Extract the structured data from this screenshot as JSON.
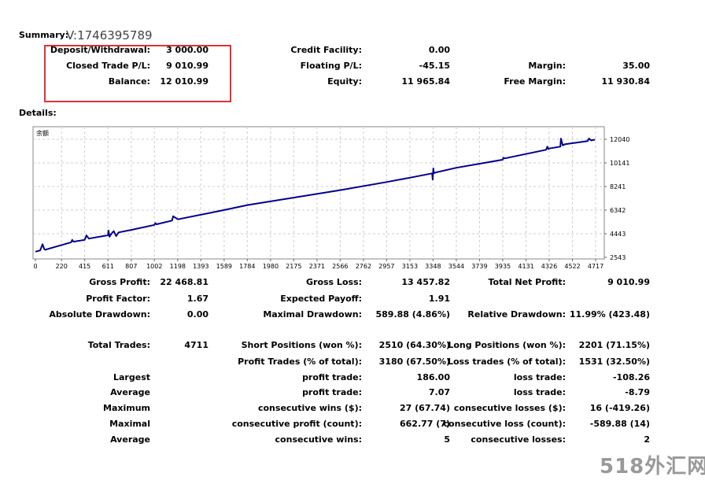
{
  "summary": {
    "title": "Summary:",
    "account": "V:1746395789",
    "rows": [
      [
        {
          "label": "Deposit/Withdrawal:",
          "value": "3 000.00"
        },
        {
          "label": "Credit Facility:",
          "value": "0.00"
        },
        {
          "label": "",
          "value": ""
        }
      ],
      [
        {
          "label": "Closed Trade P/L:",
          "value": "9 010.99"
        },
        {
          "label": "Floating P/L:",
          "value": "-45.15"
        },
        {
          "label": "Margin:",
          "value": "35.00"
        }
      ],
      [
        {
          "label": "Balance:",
          "value": "12 010.99"
        },
        {
          "label": "Equity:",
          "value": "11 965.84"
        },
        {
          "label": "Free Margin:",
          "value": "11 930.84"
        }
      ]
    ]
  },
  "details": {
    "title": "Details:",
    "rows": [
      [
        {
          "label": "Gross Profit:",
          "value": "22 468.81"
        },
        {
          "label": "Gross Loss:",
          "value": "13 457.82"
        },
        {
          "label": "Total Net Profit:",
          "value": "9 010.99"
        }
      ],
      [
        {
          "label": "Profit Factor:",
          "value": "1.67"
        },
        {
          "label": "Expected Payoff:",
          "value": "1.91"
        },
        {
          "label": "",
          "value": ""
        }
      ],
      [
        {
          "label": "Absolute Drawdown:",
          "value": "0.00"
        },
        {
          "label": "Maximal Drawdown:",
          "value": "589.88 (4.86%)"
        },
        {
          "label": "Relative Drawdown:",
          "value": "11.99% (423.48)"
        }
      ],
      [
        {
          "label": "Total Trades:",
          "value": "4711"
        },
        {
          "label": "Short Positions (won %):",
          "value": "2510 (64.30%)"
        },
        {
          "label": "Long Positions (won %):",
          "value": "2201 (71.15%)"
        }
      ],
      [
        {
          "label": "",
          "value": ""
        },
        {
          "label": "Profit Trades (% of total):",
          "value": "3180 (67.50%)"
        },
        {
          "label": "Loss trades (% of total):",
          "value": "1531 (32.50%)"
        }
      ],
      [
        {
          "label": "Largest",
          "value": ""
        },
        {
          "label": "profit trade:",
          "value": "186.00"
        },
        {
          "label": "loss trade:",
          "value": "-108.26"
        }
      ],
      [
        {
          "label": "Average",
          "value": ""
        },
        {
          "label": "profit trade:",
          "value": "7.07"
        },
        {
          "label": "loss trade:",
          "value": "-8.79"
        }
      ],
      [
        {
          "label": "Maximum",
          "value": ""
        },
        {
          "label": "consecutive wins ($):",
          "value": "27 (67.74)"
        },
        {
          "label": "consecutive losses ($):",
          "value": "16 (-419.26)"
        }
      ],
      [
        {
          "label": "Maximal",
          "value": ""
        },
        {
          "label": "consecutive profit (count):",
          "value": "662.77 (7)"
        },
        {
          "label": "consecutive loss (count):",
          "value": "-589.88 (14)"
        }
      ],
      [
        {
          "label": "Average",
          "value": ""
        },
        {
          "label": "consecutive wins:",
          "value": "5"
        },
        {
          "label": "consecutive losses:",
          "value": "2"
        }
      ]
    ]
  },
  "watermark": "518外汇网",
  "chart_data": {
    "type": "line",
    "title": "余额",
    "xlabel": "",
    "ylabel": "",
    "xlim": [
      0,
      4760
    ],
    "ylim": [
      2543,
      12040
    ],
    "x_ticks": [
      0,
      220,
      415,
      611,
      807,
      1002,
      1198,
      1393,
      1589,
      1784,
      1980,
      2175,
      2371,
      2566,
      2762,
      2957,
      3153,
      3348,
      3544,
      3739,
      3935,
      4131,
      4326,
      4522,
      4717
    ],
    "y_ticks": [
      2543,
      4443,
      6342,
      8241,
      10141,
      12040
    ],
    "grid": true,
    "series": [
      {
        "name": "Balance",
        "color": "#00008b",
        "x": [
          0,
          40,
          60,
          75,
          85,
          100,
          300,
          310,
          320,
          415,
          430,
          450,
          611,
          615,
          625,
          640,
          660,
          680,
          700,
          807,
          1002,
          1010,
          1020,
          1150,
          1160,
          1200,
          1589,
          1784,
          2175,
          2566,
          2957,
          3153,
          3340,
          3345,
          3350,
          3355,
          3360,
          3544,
          3935,
          3940,
          3950,
          4300,
          4310,
          4320,
          4326,
          4420,
          4425,
          4440,
          4460,
          4650,
          4660,
          4680,
          4711
        ],
        "y": [
          3000,
          3100,
          3600,
          3200,
          3150,
          3200,
          3750,
          3950,
          3800,
          3950,
          4300,
          4050,
          4320,
          4700,
          4200,
          4450,
          4650,
          4250,
          4550,
          4750,
          5150,
          5300,
          5200,
          5500,
          5850,
          5600,
          6350,
          6750,
          7350,
          7950,
          8600,
          8950,
          9300,
          8800,
          9700,
          9300,
          9350,
          9750,
          10400,
          10550,
          10500,
          11200,
          11450,
          11250,
          11300,
          11450,
          12100,
          11550,
          11650,
          11900,
          12100,
          11950,
          12011
        ]
      }
    ]
  }
}
